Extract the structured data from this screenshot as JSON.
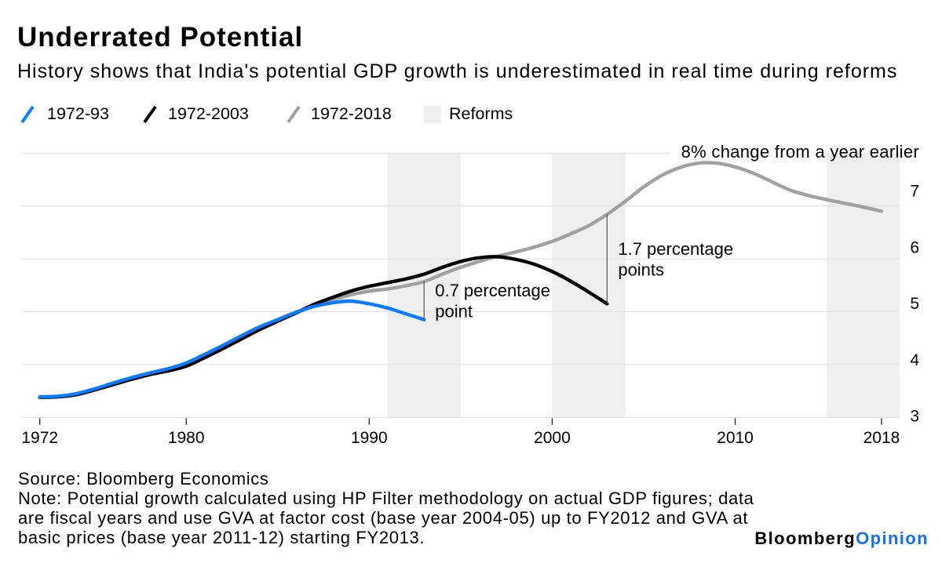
{
  "chart_data": {
    "type": "line",
    "title": "Underrated Potential",
    "subtitle": "History shows that India's potential GDP growth is underestimated in real time during reforms",
    "xlim": [
      1971,
      2019
    ],
    "ylim": [
      3,
      8
    ],
    "y_axis_side": "right",
    "grid": "horizontal",
    "legend_position": "top-left",
    "xticks": [
      1972,
      1980,
      1990,
      2000,
      2010,
      2018
    ],
    "xtick_labels": [
      "1972",
      "1980",
      "1990",
      "2000",
      "2010",
      "2018"
    ],
    "yticks": [
      3,
      4,
      5,
      6,
      7,
      8
    ],
    "ytick_labels": [
      "3",
      "4",
      "5",
      "6",
      "7",
      "8% change from a year earlier"
    ],
    "legend": [
      {
        "label": "1972-93",
        "type": "line",
        "color": "#0c7bff"
      },
      {
        "label": "1972-2003",
        "type": "line",
        "color": "#000000"
      },
      {
        "label": "1972-2018",
        "type": "line",
        "color": "#a1a1a1"
      },
      {
        "label": "Reforms",
        "type": "shaded-region",
        "color": "#efefef"
      }
    ],
    "series": [
      {
        "name": "1972-93",
        "color": "#0c7bff",
        "start_year": 1972,
        "end_year": 1993,
        "values": [
          3.39,
          3.4,
          3.45,
          3.54,
          3.65,
          3.75,
          3.84,
          3.92,
          4.03,
          4.19,
          4.36,
          4.54,
          4.71,
          4.85,
          4.99,
          5.1,
          5.17,
          5.2,
          5.15,
          5.07,
          4.96,
          4.85
        ]
      },
      {
        "name": "1972-2003",
        "color": "#000000",
        "start_year": 1972,
        "end_year": 2003,
        "values": [
          3.38,
          3.39,
          3.43,
          3.52,
          3.62,
          3.72,
          3.81,
          3.88,
          3.97,
          4.13,
          4.3,
          4.48,
          4.66,
          4.82,
          4.98,
          5.14,
          5.27,
          5.39,
          5.48,
          5.55,
          5.62,
          5.71,
          5.84,
          5.95,
          6.02,
          6.04,
          5.99,
          5.9,
          5.76,
          5.58,
          5.37,
          5.15
        ]
      },
      {
        "name": "1972-2018",
        "color": "#a1a1a1",
        "start_year": 1972,
        "end_year": 2018,
        "values": [
          3.38,
          3.39,
          3.43,
          3.52,
          3.62,
          3.72,
          3.81,
          3.88,
          3.97,
          4.13,
          4.3,
          4.48,
          4.66,
          4.82,
          4.97,
          5.11,
          5.23,
          5.32,
          5.39,
          5.43,
          5.49,
          5.57,
          5.71,
          5.84,
          5.95,
          6.05,
          6.13,
          6.22,
          6.33,
          6.47,
          6.63,
          6.84,
          7.09,
          7.36,
          7.58,
          7.73,
          7.81,
          7.81,
          7.74,
          7.62,
          7.46,
          7.3,
          7.2,
          7.12,
          7.05,
          6.98,
          6.9
        ]
      }
    ],
    "shaded_regions": [
      {
        "label": "Reforms",
        "from": 1991,
        "to": 1995
      },
      {
        "label": "Reforms",
        "from": 2000,
        "to": 2004
      },
      {
        "label": "Reforms",
        "from": 2015,
        "to": 2019
      }
    ],
    "annotations": [
      {
        "lines": [
          "0.7 percentage",
          "point"
        ],
        "year": 1993,
        "from_value": 5.57,
        "to_value": 4.85
      },
      {
        "lines": [
          "1.7 percentage",
          "points"
        ],
        "year": 2003,
        "from_value": 6.84,
        "to_value": 5.15
      }
    ]
  },
  "footer": {
    "source": "Source: Bloomberg Economics",
    "note_lines": [
      "Note: Potential growth calculated using HP Filter methodology on actual GDP figures; data",
      "are fiscal years and use GVA at factor cost (base year 2004-05) up to FY2012 and GVA at",
      "basic prices (base year 2011-12) starting FY2013."
    ],
    "logo": {
      "primary": "Bloomberg",
      "accent": "Opinion",
      "accent_color": "#1470f0"
    }
  }
}
